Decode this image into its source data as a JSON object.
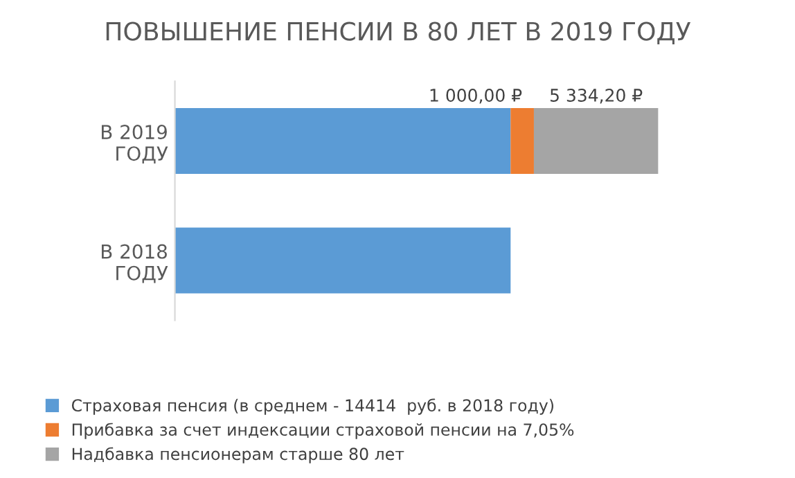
{
  "chart_data": {
    "type": "bar",
    "orientation": "horizontal",
    "stacked": true,
    "title": "ПОВЫШЕНИЕ ПЕНСИИ В 80 ЛЕТ В 2019 ГОДУ",
    "categories": [
      "В 2019\nГОДУ",
      "В 2018\nГОДУ"
    ],
    "series": [
      {
        "name": "Страховая пенсия (в среднем - 14414  руб. в 2018 году)",
        "color": "#5b9bd5",
        "values": [
          14414,
          14414
        ]
      },
      {
        "name": "Прибавка за счет индексации страховой пенсии на 7,05%",
        "color": "#ed7d31",
        "values": [
          1000,
          null
        ],
        "value_labels": [
          "1 000,00 ₽",
          null
        ]
      },
      {
        "name": "Надбавка пенсионерам старше 80 лет",
        "color": "#a5a5a5",
        "values": [
          5334.2,
          null
        ],
        "value_labels": [
          "5 334,20 ₽",
          null
        ]
      }
    ],
    "legend": "bottom",
    "tick_labels": "y",
    "grid": false
  }
}
